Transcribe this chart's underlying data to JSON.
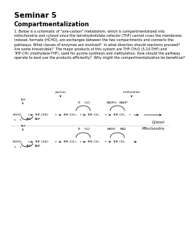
{
  "title": "Seminar 5",
  "subtitle": "Compartmentalization",
  "body_text": "1. Below is a schematic of \"one-carbon\" metabolism, which is compartmentalized into\nmitochondria and cytosol since the tetrahydrofolate cofactor (THF) cannot cross the membrane.\nInstead, formate (HCHO), are exchanges between the two compartments and connects the\npathways. What classes of enzymes are involved?  In what direction should reactions proceed?\nAre some irreversible?  The major products of this system are THF-CH₂O (5,10-THF) and\nTHF-CH₃ (methylene-THF), used for purine synthesis and methylation. How should the pathway\noperate to best use the products efficiently?  Why might the compartmentalization be beneficial?",
  "cytosol_label": "Cytosol",
  "mito_label": "Mitochondria",
  "purines_label": "purines",
  "methylation_label": "methylation",
  "bg_color": "#ffffff",
  "text_color": "#000000",
  "divider_color": "#bbbbbb",
  "fontsize_title": 7.5,
  "fontsize_subtitle": 6.0,
  "fontsize_body": 3.5,
  "fontsize_diagram": 3.2,
  "fontsize_label": 3.0
}
